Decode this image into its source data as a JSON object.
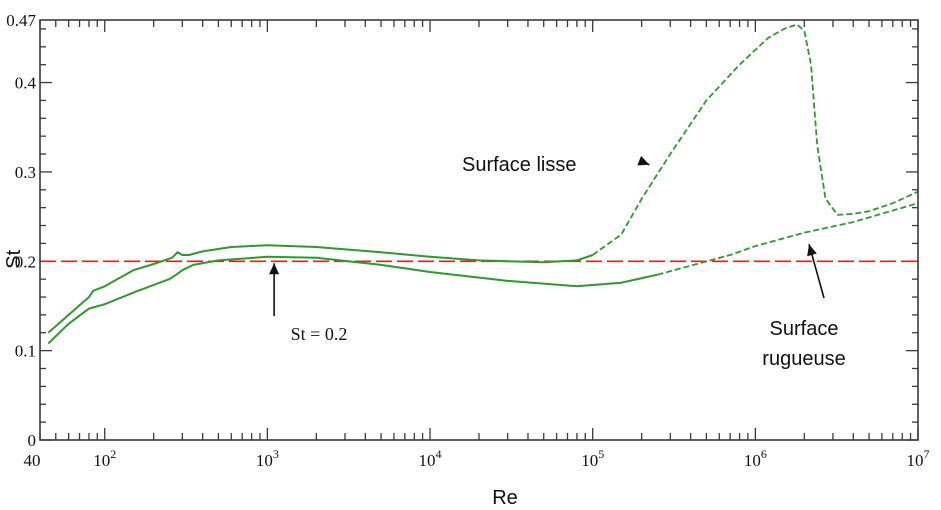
{
  "chart_data": {
    "type": "line",
    "title": "",
    "xlabel": "Re",
    "ylabel": "St",
    "xscale": "log",
    "xlim": [
      40,
      10000000
    ],
    "ylim": [
      0,
      0.47
    ],
    "grid": false,
    "x_tick_labels": [
      {
        "value": 40,
        "label": "40",
        "exp": ""
      },
      {
        "value": 100,
        "label": "10",
        "exp": "2"
      },
      {
        "value": 1000,
        "label": "10",
        "exp": "3"
      },
      {
        "value": 10000,
        "label": "10",
        "exp": "4"
      },
      {
        "value": 100000,
        "label": "10",
        "exp": "5"
      },
      {
        "value": 1000000,
        "label": "10",
        "exp": "6"
      },
      {
        "value": 10000000,
        "label": "10",
        "exp": "7"
      }
    ],
    "y_tick_labels": [
      {
        "value": 0,
        "label": "0"
      },
      {
        "value": 0.1,
        "label": "0.1"
      },
      {
        "value": 0.2,
        "label": "0.2"
      },
      {
        "value": 0.3,
        "label": "0.3"
      },
      {
        "value": 0.4,
        "label": "0.4"
      },
      {
        "value": 0.47,
        "label": "0.47"
      }
    ],
    "colors": {
      "curves": "#2e9a2e",
      "reference": "#e02020",
      "axes": "#3a3a3a",
      "arrows": "#111111"
    },
    "series": [
      {
        "id": "smooth-upper",
        "style": "mixed",
        "points": [
          [
            45,
            0.12
          ],
          [
            60,
            0.14
          ],
          [
            80,
            0.16
          ],
          [
            85,
            0.167
          ],
          [
            100,
            0.172
          ],
          [
            150,
            0.19
          ],
          [
            200,
            0.197
          ],
          [
            260,
            0.204
          ],
          [
            280,
            0.21
          ],
          [
            300,
            0.207
          ],
          [
            330,
            0.207
          ],
          [
            400,
            0.211
          ],
          [
            600,
            0.216
          ],
          [
            1000,
            0.218
          ],
          [
            2000,
            0.216
          ],
          [
            5000,
            0.21
          ],
          [
            10000,
            0.205
          ],
          [
            20000,
            0.201
          ],
          [
            50000,
            0.199
          ],
          [
            80000,
            0.201
          ],
          [
            100000,
            0.207
          ]
        ],
        "dashed_points": [
          [
            100000,
            0.207
          ],
          [
            150000,
            0.23
          ],
          [
            200000,
            0.27
          ],
          [
            300000,
            0.32
          ],
          [
            500000,
            0.38
          ],
          [
            800000,
            0.42
          ],
          [
            1200000,
            0.45
          ],
          [
            1500000,
            0.46
          ],
          [
            1800000,
            0.465
          ],
          [
            2000000,
            0.458
          ],
          [
            2200000,
            0.42
          ],
          [
            2400000,
            0.33
          ],
          [
            2700000,
            0.27
          ],
          [
            3200000,
            0.252
          ],
          [
            4000000,
            0.253
          ],
          [
            5000000,
            0.256
          ],
          [
            7000000,
            0.265
          ],
          [
            10000000,
            0.278
          ]
        ]
      },
      {
        "id": "rough-lower",
        "style": "mixed",
        "points": [
          [
            45,
            0.108
          ],
          [
            60,
            0.13
          ],
          [
            80,
            0.147
          ],
          [
            100,
            0.152
          ],
          [
            150,
            0.165
          ],
          [
            250,
            0.18
          ],
          [
            280,
            0.186
          ],
          [
            300,
            0.19
          ],
          [
            350,
            0.196
          ],
          [
            500,
            0.201
          ],
          [
            1000,
            0.205
          ],
          [
            2000,
            0.204
          ],
          [
            5000,
            0.196
          ],
          [
            10000,
            0.188
          ],
          [
            30000,
            0.178
          ],
          [
            80000,
            0.172
          ],
          [
            150000,
            0.176
          ],
          [
            250000,
            0.185
          ]
        ],
        "dashed_points": [
          [
            250000,
            0.185
          ],
          [
            400000,
            0.195
          ],
          [
            700000,
            0.207
          ],
          [
            1000000,
            0.217
          ],
          [
            2000000,
            0.232
          ],
          [
            4000000,
            0.244
          ],
          [
            10000000,
            0.265
          ]
        ]
      }
    ],
    "reference_line": {
      "y": 0.2,
      "style": "dashed"
    },
    "annotations": [
      {
        "id": "surface-lisse",
        "lines": [
          "Surface lisse"
        ],
        "arrow_to": [
          280000,
          0.308
        ]
      },
      {
        "id": "st-label",
        "lines": [
          "St = 0.2"
        ],
        "arrow_to": [
          1100,
          0.2
        ]
      },
      {
        "id": "surface-rugueuse",
        "lines": [
          "Surface",
          "rugueuse"
        ],
        "arrow_to": [
          2200000,
          0.228
        ]
      }
    ]
  }
}
